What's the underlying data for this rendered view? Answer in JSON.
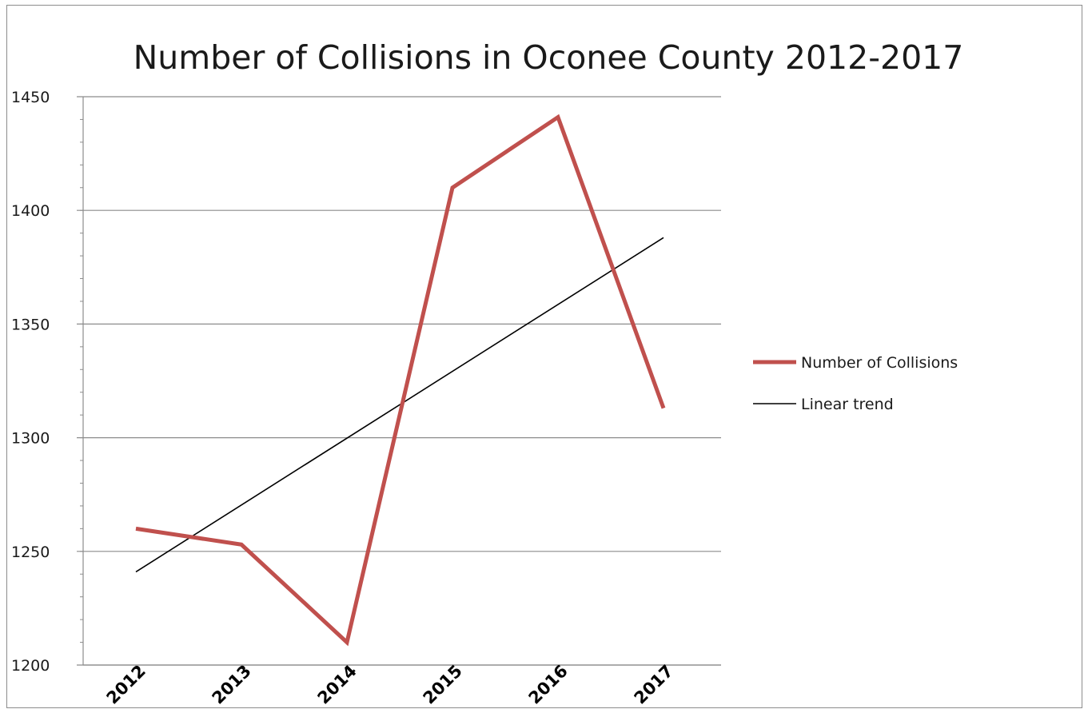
{
  "chart_data": {
    "type": "line",
    "title": "Number of Collisions in Oconee County  2012-2017",
    "xlabel": "",
    "ylabel": "",
    "categories": [
      "2012",
      "2013",
      "2014",
      "2015",
      "2016",
      "2017"
    ],
    "ylim": [
      1200,
      1450
    ],
    "yticks": [
      1200,
      1250,
      1300,
      1350,
      1400,
      1450
    ],
    "grid": true,
    "legend_position": "right",
    "series": [
      {
        "name": "Number of Collisions",
        "values": [
          1260,
          1253,
          1210,
          1410,
          1441,
          1313
        ],
        "color": "#c0504d"
      }
    ],
    "trendline": {
      "name": "Linear trend",
      "start": 1241,
      "end": 1388,
      "color": "#000000"
    }
  }
}
